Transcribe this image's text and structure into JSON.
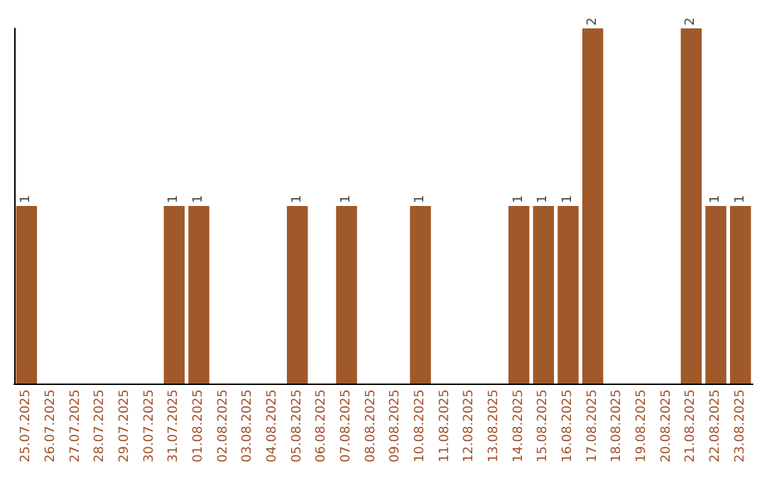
{
  "chart_data": {
    "type": "bar",
    "categories": [
      "25.07.2025",
      "26.07.2025",
      "27.07.2025",
      "28.07.2025",
      "29.07.2025",
      "30.07.2025",
      "31.07.2025",
      "01.08.2025",
      "02.08.2025",
      "03.08.2025",
      "04.08.2025",
      "05.08.2025",
      "06.08.2025",
      "07.08.2025",
      "08.08.2025",
      "09.08.2025",
      "10.08.2025",
      "11.08.2025",
      "12.08.2025",
      "13.08.2025",
      "14.08.2025",
      "15.08.2025",
      "16.08.2025",
      "17.08.2025",
      "18.08.2025",
      "19.08.2025",
      "20.08.2025",
      "21.08.2025",
      "22.08.2025",
      "23.08.2025"
    ],
    "values": [
      1,
      0,
      0,
      0,
      0,
      0,
      1,
      1,
      0,
      0,
      0,
      1,
      0,
      1,
      0,
      0,
      1,
      0,
      0,
      0,
      1,
      1,
      1,
      2,
      0,
      0,
      0,
      2,
      1,
      1
    ],
    "value_labels": [
      "1",
      null,
      null,
      null,
      null,
      null,
      "1",
      "1",
      null,
      null,
      null,
      "1",
      null,
      "1",
      null,
      null,
      "1",
      null,
      null,
      null,
      "1",
      "1",
      "1",
      "2",
      null,
      null,
      null,
      "2",
      "1",
      "1"
    ],
    "color": "#a0592a",
    "ylim": [
      0,
      2
    ],
    "tick_labels": "x"
  }
}
